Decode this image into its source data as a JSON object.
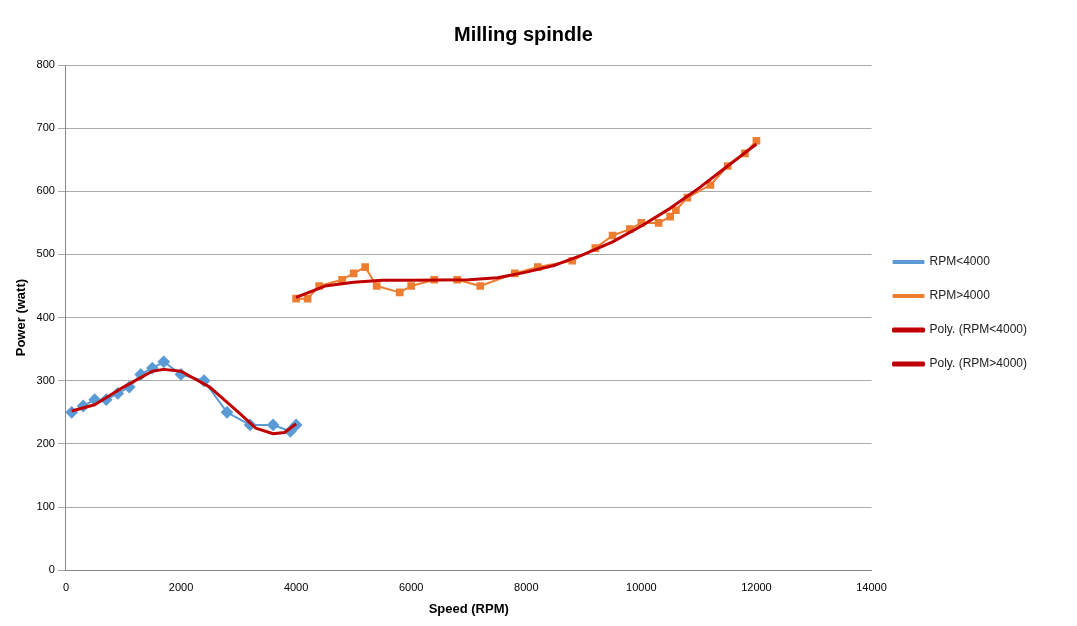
{
  "chart_data": {
    "type": "line",
    "title": "Milling spindle",
    "xlabel": "Speed (RPM)",
    "ylabel": "Power (watt)",
    "xlim": [
      0,
      14000
    ],
    "xticks": [
      0,
      2000,
      4000,
      6000,
      8000,
      10000,
      12000,
      14000
    ],
    "ylim": [
      0,
      800
    ],
    "yticks": [
      0,
      100,
      200,
      300,
      400,
      500,
      600,
      700,
      800
    ],
    "grid": "y",
    "legend": "right",
    "line_style": "solid",
    "series": [
      {
        "name": "RPM<4000",
        "color": "#5b9bd5",
        "marker": "diamond",
        "x": [
          100,
          300,
          500,
          700,
          900,
          1100,
          1300,
          1500,
          1700,
          2000,
          2400,
          2800,
          3200,
          3600,
          3900,
          4000
        ],
        "values": [
          250,
          260,
          270,
          270,
          280,
          290,
          310,
          320,
          330,
          310,
          300,
          250,
          230,
          230,
          220,
          230
        ]
      },
      {
        "name": "RPM>4000",
        "color": "#ed7d31",
        "marker": "square",
        "x": [
          4000,
          4200,
          4400,
          4800,
          5000,
          5200,
          5400,
          5800,
          6000,
          6400,
          6800,
          7200,
          7800,
          8200,
          8800,
          9200,
          9500,
          9800,
          10000,
          10300,
          10500,
          10600,
          10800,
          11200,
          11500,
          11800,
          12000
        ],
        "values": [
          430,
          430,
          450,
          460,
          470,
          480,
          450,
          440,
          450,
          460,
          460,
          450,
          470,
          480,
          490,
          510,
          530,
          540,
          550,
          550,
          560,
          570,
          590,
          610,
          640,
          660,
          680
        ]
      },
      {
        "name": "Poly. (RPM<4000)",
        "color": "#c00000",
        "marker": "none",
        "x": [
          100,
          500,
          1000,
          1500,
          1700,
          2000,
          2500,
          3000,
          3300,
          3600,
          3800,
          4000
        ],
        "values": [
          252,
          262,
          290,
          315,
          318,
          315,
          290,
          250,
          225,
          216,
          218,
          232
        ]
      },
      {
        "name": "Poly. (RPM>4000)",
        "color": "#c00000",
        "marker": "none",
        "x": [
          4000,
          4500,
          5000,
          5500,
          6000,
          7000,
          7500,
          8000,
          8500,
          9000,
          9500,
          10000,
          10500,
          11000,
          11500,
          12000
        ],
        "values": [
          432,
          450,
          456,
          459,
          459,
          460,
          463,
          472,
          483,
          500,
          520,
          545,
          573,
          605,
          640,
          675
        ]
      }
    ]
  }
}
